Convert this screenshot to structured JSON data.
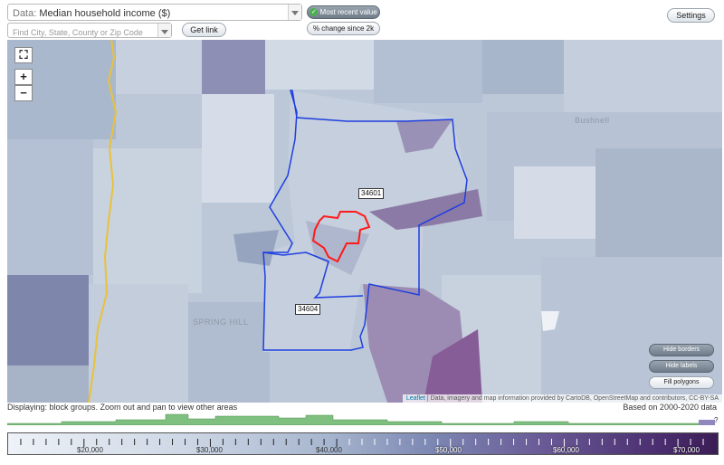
{
  "data_select": {
    "prefix": "Data:",
    "value": "Median household income ($)"
  },
  "search": {
    "placeholder": "Find City, State, County or Zip Code"
  },
  "buttons": {
    "get_link": "Get link",
    "most_recent": "Most recent value",
    "pct_change": "% change since 2k",
    "settings": "Settings",
    "hide_borders": "Hide borders",
    "hide_labels": "Hide labels",
    "fill_polygons": "Fill polygons"
  },
  "map": {
    "zoom_in": "+",
    "zoom_out": "−",
    "labels": {
      "bushnell": "Bushnell",
      "spring_hill": "SPRING HILL"
    },
    "zip_labels": [
      "34601",
      "34604"
    ],
    "attribution": {
      "leaflet": "Leaflet",
      "rest": " | Data, imagery and map information provided by CartoDB, OpenStreetMap and contributors, CC-BY-SA"
    }
  },
  "status": {
    "displaying": "Displaying: block groups. Zoom out and pan to view other areas",
    "based_on": "Based on 2000-2020 data",
    "question": "?"
  },
  "legend": {
    "ticks": [
      "$20,000",
      "$30,000",
      "$40,000",
      "$50,000",
      "$60,000",
      "$70,000"
    ]
  },
  "colors": {
    "boundary_blue": "#1f3fe0",
    "boundary_red": "#ff1a1a",
    "road_yellow": "#e8c23a",
    "histogram_green": "#7fbf7f"
  }
}
